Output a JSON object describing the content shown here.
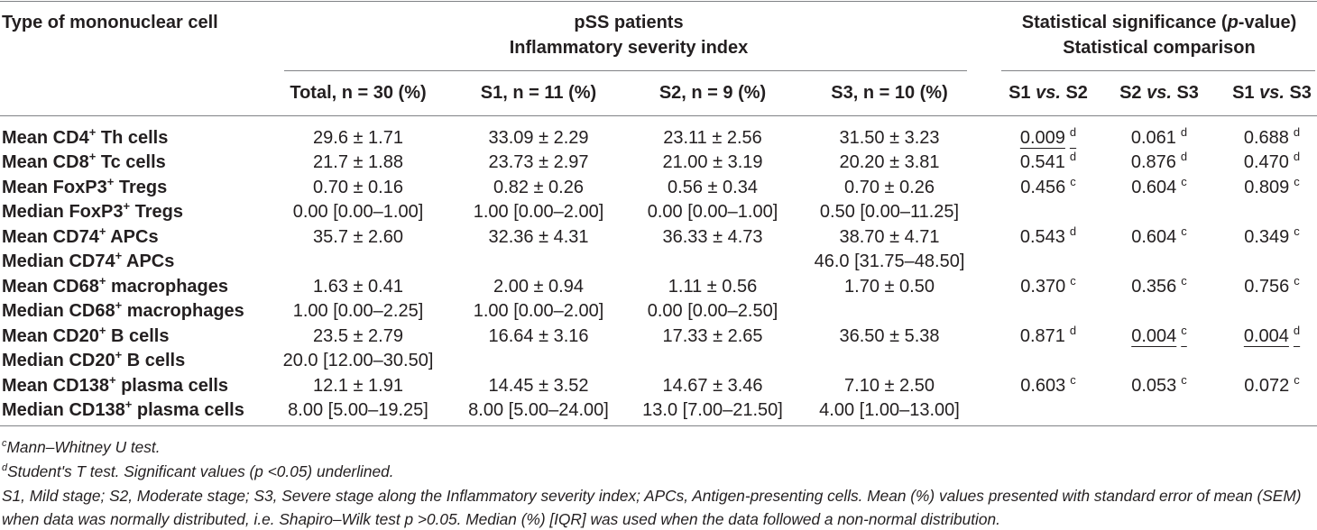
{
  "header": {
    "col0": "Type of mononuclear cell",
    "group1": {
      "line1": "pSS patients",
      "line2": "Inflammatory severity index"
    },
    "group2": {
      "line1_pre": "Statistical significance (",
      "line1_em": "p",
      "line1_post": "-value)",
      "line2": "Statistical comparison"
    },
    "columns": [
      "Total, n = 30 (%)",
      "S1, n = 11 (%)",
      "S2, n = 9 (%)",
      "S3, n = 10 (%)"
    ],
    "comparisons": [
      {
        "pre": "S1 ",
        "em": "vs.",
        "post": " S2"
      },
      {
        "pre": "S2 ",
        "em": "vs.",
        "post": " S3"
      },
      {
        "pre": "S1 ",
        "em": "vs.",
        "post": " S3"
      }
    ]
  },
  "rows": [
    {
      "label": {
        "pre": "Mean CD4",
        "sup": "+",
        "post": " Th cells"
      },
      "values": [
        "29.6 ± 1.71",
        "33.09 ± 2.29",
        "23.11 ± 2.56",
        "31.50 ± 3.23"
      ],
      "p": [
        {
          "v": "0.009",
          "sup": "d",
          "underlined": true
        },
        {
          "v": "0.061",
          "sup": "d"
        },
        {
          "v": "0.688",
          "sup": "d"
        }
      ]
    },
    {
      "label": {
        "pre": "Mean CD8",
        "sup": "+",
        "post": " Tc cells"
      },
      "values": [
        "21.7 ± 1.88",
        "23.73 ± 2.97",
        "21.00 ± 3.19",
        "20.20 ± 3.81"
      ],
      "p": [
        {
          "v": "0.541",
          "sup": "d"
        },
        {
          "v": "0.876",
          "sup": "d"
        },
        {
          "v": "0.470",
          "sup": "d"
        }
      ]
    },
    {
      "label": {
        "pre": "Mean FoxP3",
        "sup": "+",
        "post": " Tregs"
      },
      "values": [
        "0.70 ± 0.16",
        "0.82 ± 0.26",
        "0.56 ± 0.34",
        "0.70 ± 0.26"
      ],
      "p": [
        {
          "v": "0.456",
          "sup": "c"
        },
        {
          "v": "0.604",
          "sup": "c"
        },
        {
          "v": "0.809",
          "sup": "c"
        }
      ]
    },
    {
      "label": {
        "pre": "Median FoxP3",
        "sup": "+",
        "post": " Tregs"
      },
      "values": [
        "0.00 [0.00–1.00]",
        "1.00 [0.00–2.00]",
        "0.00 [0.00–1.00]",
        "0.50 [0.00–11.25]"
      ],
      "p": [
        null,
        null,
        null
      ]
    },
    {
      "label": {
        "pre": "Mean CD74",
        "sup": "+",
        "post": " APCs"
      },
      "values": [
        "35.7 ± 2.60",
        "32.36 ± 4.31",
        "36.33 ± 4.73",
        "38.70 ± 4.71"
      ],
      "p": [
        {
          "v": "0.543",
          "sup": "d"
        },
        {
          "v": "0.604",
          "sup": "c"
        },
        {
          "v": "0.349",
          "sup": "c"
        }
      ]
    },
    {
      "label": {
        "pre": "Median CD74",
        "sup": "+",
        "post": " APCs"
      },
      "values": [
        null,
        null,
        null,
        "46.0 [31.75–48.50]"
      ],
      "p": [
        null,
        null,
        null
      ]
    },
    {
      "label": {
        "pre": "Mean CD68",
        "sup": "+",
        "post": " macrophages"
      },
      "values": [
        "1.63 ± 0.41",
        "2.00 ± 0.94",
        "1.11 ± 0.56",
        "1.70 ± 0.50"
      ],
      "p": [
        {
          "v": "0.370",
          "sup": "c"
        },
        {
          "v": "0.356",
          "sup": "c"
        },
        {
          "v": "0.756",
          "sup": "c"
        }
      ]
    },
    {
      "label": {
        "pre": "Median CD68",
        "sup": "+",
        "post": " macrophages"
      },
      "values": [
        "1.00 [0.00–2.25]",
        "1.00 [0.00–2.00]",
        "0.00 [0.00–2.50]",
        null
      ],
      "p": [
        null,
        null,
        null
      ]
    },
    {
      "label": {
        "pre": "Mean CD20",
        "sup": "+",
        "post": " B cells"
      },
      "values": [
        "23.5 ± 2.79",
        "16.64 ± 3.16",
        "17.33 ± 2.65",
        "36.50 ± 5.38"
      ],
      "p": [
        {
          "v": "0.871",
          "sup": "d"
        },
        {
          "v": "0.004",
          "sup": "c",
          "underlined": true
        },
        {
          "v": "0.004",
          "sup": "d",
          "underlined": true
        }
      ]
    },
    {
      "label": {
        "pre": "Median CD20",
        "sup": "+",
        "post": " B cells"
      },
      "values": [
        "20.0 [12.00–30.50]",
        null,
        null,
        null
      ],
      "p": [
        null,
        null,
        null
      ]
    },
    {
      "label": {
        "pre": "Mean CD138",
        "sup": "+",
        "post": " plasma cells"
      },
      "values": [
        "12.1 ± 1.91",
        "14.45 ± 3.52",
        "14.67 ± 3.46",
        "7.10 ± 2.50"
      ],
      "p": [
        {
          "v": "0.603",
          "sup": "c"
        },
        {
          "v": "0.053",
          "sup": "c"
        },
        {
          "v": "0.072",
          "sup": "c"
        }
      ]
    },
    {
      "label": {
        "pre": "Median CD138",
        "sup": "+",
        "post": " plasma cells"
      },
      "values": [
        "8.00 [5.00–19.25]",
        "8.00 [5.00–24.00]",
        "13.0 [7.00–21.50]",
        "4.00 [1.00–13.00]"
      ],
      "p": [
        null,
        null,
        null
      ]
    }
  ],
  "footnotes": [
    {
      "sup": "c",
      "text": "Mann–Whitney U test."
    },
    {
      "sup": "d",
      "text": "Student's T test. Significant values (p <0.05) underlined."
    },
    {
      "text": "S1, Mild stage; S2, Moderate stage; S3, Severe stage along the Inflammatory severity index; APCs, Antigen-presenting cells. Mean (%) values presented with standard error of mean (SEM)"
    },
    {
      "text": "when data was normally distributed, i.e. Shapiro–Wilk test p >0.05. Median (%) [IQR] was used when the data followed a non-normal distribution."
    }
  ]
}
